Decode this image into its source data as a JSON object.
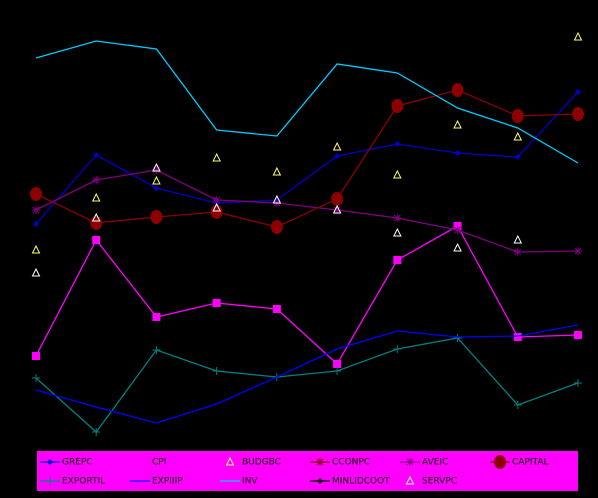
{
  "chart_data": {
    "type": "line",
    "categories": [
      null,
      null,
      null,
      null,
      null,
      null,
      null,
      null,
      null,
      null
    ],
    "ylim": [
      0,
      450
    ],
    "legend": "bottom",
    "legend_color": "#ff00ff",
    "series": [
      {
        "name": "GREPC",
        "color": "#0000cc",
        "marker": "diamond",
        "line": true,
        "values": [
          226,
          295,
          262,
          247,
          250,
          294,
          306,
          297,
          293,
          358
        ]
      },
      {
        "name": "CPI",
        "color": "#ff00ff",
        "marker": "square",
        "line": true,
        "values": [
          94,
          210,
          133,
          147,
          141,
          86,
          190,
          224,
          113,
          115
        ]
      },
      {
        "name": "BUDGBC",
        "color": "#ffff66",
        "marker": "triangle",
        "line": false,
        "values": [
          200,
          252,
          269,
          292,
          278,
          303,
          275,
          325,
          313,
          413
        ]
      },
      {
        "name": "CCONPC",
        "color": "#800000",
        "marker": "star",
        "line": true,
        "values": [
          null,
          null,
          null,
          null,
          null,
          null,
          null,
          null,
          null,
          null
        ]
      },
      {
        "name": "AVEIC",
        "color": "#800080",
        "marker": "star",
        "line": true,
        "values": [
          240,
          270,
          280,
          250,
          247,
          240,
          232,
          220,
          198,
          199
        ]
      },
      {
        "name": "CAPITAL",
        "color": "#8b0000",
        "marker": "circle",
        "line": true,
        "values": [
          256,
          227,
          233,
          238,
          223,
          251,
          344,
          360,
          334,
          336
        ]
      },
      {
        "name": "EXPORTIL",
        "color": "#008080",
        "marker": "plus",
        "line": true,
        "values": [
          72,
          18,
          100,
          79,
          73,
          79,
          101,
          112,
          45,
          67
        ]
      },
      {
        "name": "EXPIIIP",
        "color": "#0000ff",
        "marker": "none",
        "line": true,
        "values": [
          60,
          43,
          27,
          46,
          73,
          101,
          119,
          113,
          114,
          125
        ]
      },
      {
        "name": "INV",
        "color": "#00ccff",
        "marker": "none",
        "line": true,
        "values": [
          392,
          409,
          401,
          320,
          314,
          386,
          377,
          342,
          322,
          287
        ]
      },
      {
        "name": "MINLIDCOOT",
        "color": "#000000",
        "marker": "diamond",
        "line": true,
        "values": [
          null,
          null,
          null,
          null,
          null,
          null,
          null,
          null,
          null,
          null
        ]
      },
      {
        "name": "SERVPC",
        "color": "#ffffff",
        "marker": "triangle",
        "line": false,
        "values": [
          177,
          232,
          282,
          242,
          250,
          240,
          217,
          202,
          210,
          null
        ]
      }
    ]
  }
}
